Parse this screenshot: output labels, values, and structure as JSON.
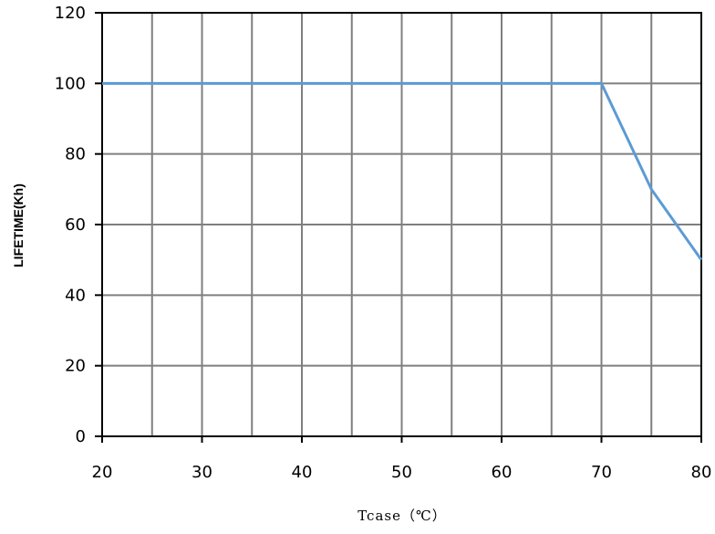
{
  "chart_data": {
    "type": "line",
    "title": "",
    "xlabel": "Tcase（℃）",
    "ylabel": "LIFETIME(Kh)",
    "xlim": [
      20,
      80
    ],
    "ylim": [
      0,
      120
    ],
    "xticks": [
      20,
      30,
      40,
      50,
      60,
      70,
      80
    ],
    "yticks": [
      0,
      20,
      40,
      60,
      80,
      100,
      120
    ],
    "x_minor_grid_step": 5,
    "grid": true,
    "line_color": "#5b9bd5",
    "grid_color": "#7f7f7f",
    "series": [
      {
        "x": [
          20,
          70,
          75,
          80
        ],
        "y": [
          100,
          100,
          70,
          50
        ]
      }
    ]
  }
}
